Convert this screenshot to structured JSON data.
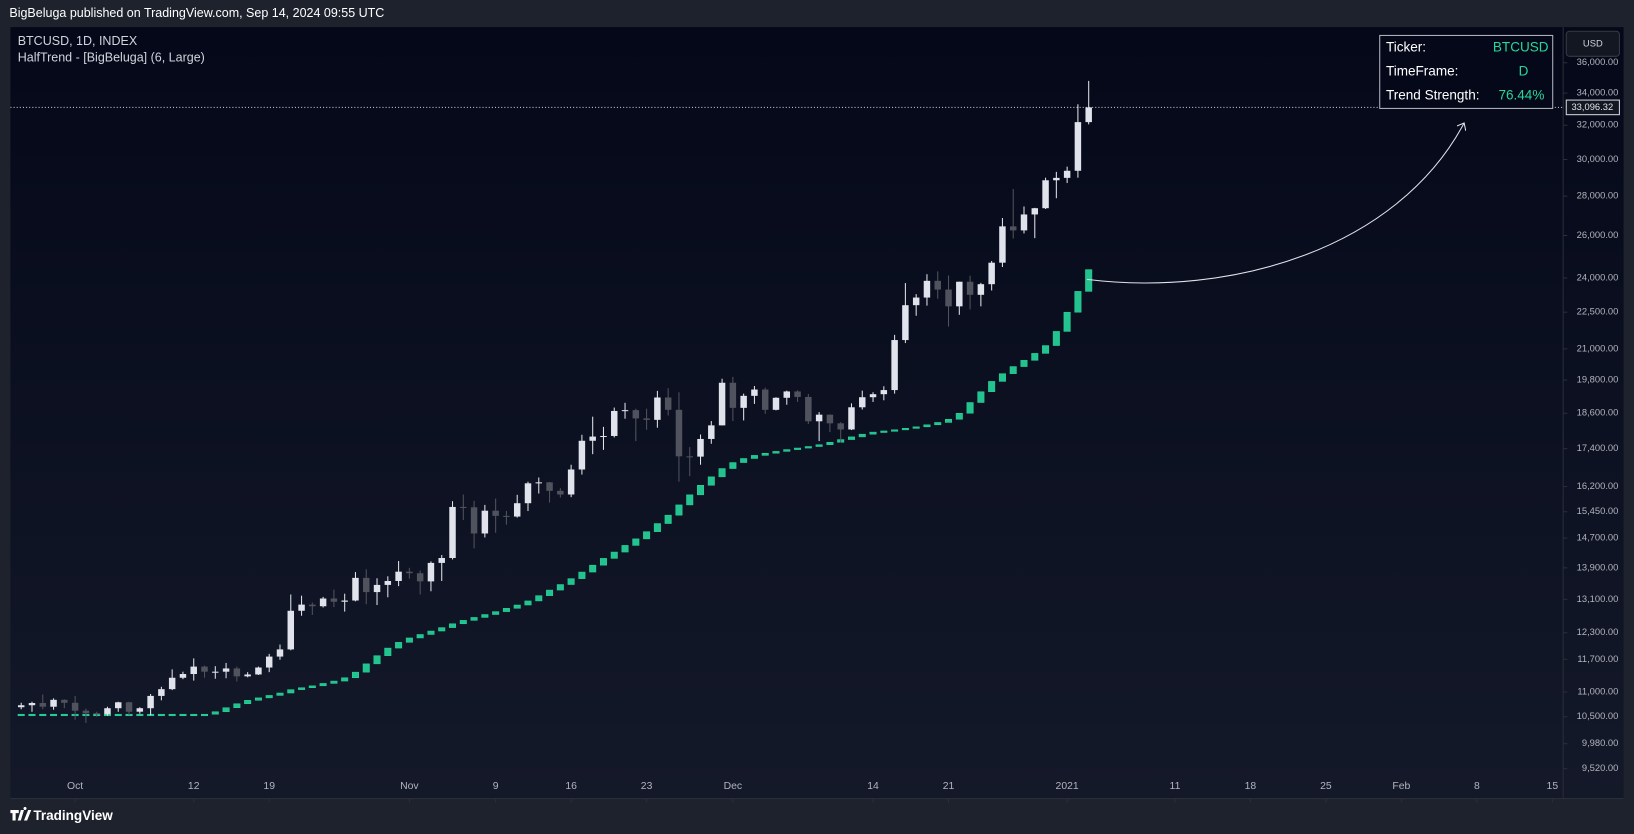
{
  "header": {
    "publisher": "BigBeluga published on TradingView.com, Sep 14, 2024 09:55 UTC"
  },
  "info_table": {
    "rows": [
      [
        "Ticker:",
        "BTCUSD"
      ],
      [
        "TimeFrame:",
        "D"
      ],
      [
        "Trend Strength:",
        "76.44%"
      ]
    ]
  },
  "footer": {
    "brand": "TradingView"
  },
  "chart_data": {
    "type": "candlestick",
    "title": "BTCUSD, 1D, INDEX",
    "currency": "USD",
    "up_color": "#e0e3eb",
    "down_color": "#50535e",
    "log_scale": true,
    "grid": false,
    "x": [
      "2020-09-26",
      "2020-09-27",
      "2020-09-28",
      "2020-09-29",
      "2020-09-30",
      "2020-10-01",
      "2020-10-02",
      "2020-10-03",
      "2020-10-04",
      "2020-10-05",
      "2020-10-06",
      "2020-10-07",
      "2020-10-08",
      "2020-10-09",
      "2020-10-10",
      "2020-10-11",
      "2020-10-12",
      "2020-10-13",
      "2020-10-14",
      "2020-10-15",
      "2020-10-16",
      "2020-10-17",
      "2020-10-18",
      "2020-10-19",
      "2020-10-20",
      "2020-10-21",
      "2020-10-22",
      "2020-10-23",
      "2020-10-24",
      "2020-10-25",
      "2020-10-26",
      "2020-10-27",
      "2020-10-28",
      "2020-10-29",
      "2020-10-30",
      "2020-10-31",
      "2020-11-01",
      "2020-11-02",
      "2020-11-03",
      "2020-11-04",
      "2020-11-05",
      "2020-11-06",
      "2020-11-07",
      "2020-11-08",
      "2020-11-09",
      "2020-11-10",
      "2020-11-11",
      "2020-11-12",
      "2020-11-13",
      "2020-11-14",
      "2020-11-15",
      "2020-11-16",
      "2020-11-17",
      "2020-11-18",
      "2020-11-19",
      "2020-11-20",
      "2020-11-21",
      "2020-11-22",
      "2020-11-23",
      "2020-11-24",
      "2020-11-25",
      "2020-11-26",
      "2020-11-27",
      "2020-11-28",
      "2020-11-29",
      "2020-11-30",
      "2020-12-01",
      "2020-12-02",
      "2020-12-03",
      "2020-12-04",
      "2020-12-05",
      "2020-12-06",
      "2020-12-07",
      "2020-12-08",
      "2020-12-09",
      "2020-12-10",
      "2020-12-11",
      "2020-12-12",
      "2020-12-13",
      "2020-12-14",
      "2020-12-15",
      "2020-12-16",
      "2020-12-17",
      "2020-12-18",
      "2020-12-19",
      "2020-12-20",
      "2020-12-21",
      "2020-12-22",
      "2020-12-23",
      "2020-12-24",
      "2020-12-25",
      "2020-12-26",
      "2020-12-27",
      "2020-12-28",
      "2020-12-29",
      "2020-12-30",
      "2020-12-31",
      "2021-01-01",
      "2021-01-02",
      "2021-01-03"
    ],
    "open": [
      10690,
      10730,
      10775,
      10700,
      10840,
      10780,
      10620,
      10570,
      10550,
      10670,
      10790,
      10600,
      10670,
      10920,
      11060,
      11300,
      11380,
      11540,
      11430,
      11430,
      11500,
      11330,
      11370,
      11520,
      11760,
      11920,
      12820,
      12970,
      12930,
      13120,
      13040,
      13070,
      13640,
      13280,
      13460,
      13560,
      13800,
      13760,
      13550,
      14030,
      14160,
      15590,
      15580,
      14830,
      15480,
      15330,
      15310,
      15700,
      16300,
      16330,
      16070,
      15960,
      16730,
      17660,
      17800,
      17820,
      18680,
      18710,
      18420,
      18370,
      19160,
      18720,
      17150,
      17140,
      17720,
      18180,
      19700,
      18790,
      19220,
      19450,
      18720,
      19150,
      19380,
      19180,
      18320,
      18550,
      18250,
      18040,
      18810,
      19170,
      19280,
      19430,
      21350,
      22800,
      23130,
      23870,
      23480,
      22750,
      23830,
      23250,
      23720,
      24700,
      26450,
      26250,
      27050,
      27370,
      28850,
      28980,
      29370,
      32190
    ],
    "high": [
      10780,
      10800,
      10950,
      10870,
      10850,
      10920,
      10660,
      10600,
      10700,
      10800,
      10800,
      10690,
      10960,
      11110,
      11480,
      11430,
      11720,
      11560,
      11550,
      11620,
      11540,
      11420,
      11540,
      11820,
      12030,
      13220,
      13190,
      13020,
      13160,
      13340,
      13240,
      13790,
      13860,
      13630,
      13680,
      14080,
      13900,
      13830,
      14070,
      14240,
      15760,
      15960,
      15770,
      15650,
      15840,
      15470,
      15950,
      16350,
      16480,
      16340,
      16150,
      16880,
      17860,
      18480,
      18130,
      18800,
      18970,
      18760,
      18760,
      19400,
      19500,
      19350,
      17450,
      17870,
      18330,
      19850,
      19920,
      19300,
      19580,
      19520,
      19170,
      19410,
      19420,
      19290,
      18640,
      18560,
      18290,
      18950,
      19410,
      19350,
      19570,
      21560,
      23770,
      23280,
      24170,
      24300,
      24110,
      23830,
      24100,
      23780,
      24780,
      26870,
      28380,
      27460,
      27390,
      28990,
      29310,
      29600,
      33290,
      34790
    ],
    "low": [
      10650,
      10600,
      10650,
      10640,
      10670,
      10440,
      10380,
      10500,
      10520,
      10600,
      10530,
      10560,
      10530,
      10830,
      11040,
      11270,
      11240,
      11300,
      11280,
      11290,
      11220,
      11310,
      11360,
      11420,
      11690,
      11900,
      12700,
      12720,
      12900,
      12910,
      12800,
      13050,
      12980,
      12960,
      13150,
      13430,
      13620,
      13220,
      13300,
      13560,
      14120,
      15210,
      14420,
      14720,
      14850,
      15080,
      15280,
      15470,
      15990,
      15720,
      15870,
      15880,
      16570,
      17220,
      17360,
      17770,
      18410,
      17650,
      18030,
      18100,
      18520,
      16350,
      16520,
      16880,
      17560,
      18180,
      18330,
      18350,
      18930,
      18580,
      18700,
      18900,
      19000,
      18230,
      17650,
      17950,
      17600,
      18020,
      18730,
      19000,
      19060,
      19300,
      21230,
      22350,
      22780,
      23080,
      21900,
      22390,
      22620,
      22750,
      23440,
      24500,
      25850,
      26100,
      25870,
      27330,
      27890,
      28700,
      28990,
      32050
    ],
    "close": [
      10730,
      10775,
      10700,
      10840,
      10780,
      10620,
      10570,
      10550,
      10670,
      10790,
      10600,
      10670,
      10920,
      11060,
      11300,
      11380,
      11540,
      11430,
      11430,
      11500,
      11330,
      11370,
      11520,
      11760,
      11920,
      12820,
      12970,
      12930,
      13120,
      13040,
      13070,
      13640,
      13280,
      13460,
      13560,
      13800,
      13760,
      13550,
      14030,
      14160,
      15590,
      15580,
      14830,
      15480,
      15330,
      15310,
      15700,
      16300,
      16330,
      16070,
      15960,
      16730,
      17660,
      17800,
      17820,
      18680,
      18710,
      18420,
      18370,
      19160,
      18720,
      17150,
      17140,
      17720,
      18180,
      19700,
      18790,
      19220,
      19450,
      18720,
      19150,
      19380,
      19180,
      18320,
      18550,
      18250,
      18040,
      18810,
      19170,
      19280,
      19430,
      21350,
      22800,
      23130,
      23870,
      23480,
      22750,
      23830,
      23250,
      23720,
      24700,
      26450,
      26250,
      27050,
      27370,
      28850,
      28980,
      29370,
      32190,
      33096.32
    ],
    "series": [
      {
        "name": "HalfTrend - [BigBeluga] (6, Large)",
        "color": "#26d69a",
        "values": [
          10550,
          10550,
          10550,
          10550,
          10550,
          10550,
          10550,
          10550,
          10550,
          10550,
          10550,
          10550,
          10550,
          10550,
          10550,
          10550,
          10550,
          10550,
          10600,
          10680,
          10760,
          10830,
          10880,
          10930,
          10980,
          11050,
          11090,
          11130,
          11180,
          11230,
          11300,
          11420,
          11600,
          11780,
          11950,
          12080,
          12180,
          12260,
          12340,
          12420,
          12510,
          12590,
          12660,
          12730,
          12800,
          12880,
          12960,
          13060,
          13190,
          13330,
          13470,
          13620,
          13790,
          13970,
          14150,
          14320,
          14500,
          14680,
          14880,
          15110,
          15350,
          15650,
          15950,
          16240,
          16500,
          16760,
          16950,
          17080,
          17180,
          17250,
          17310,
          17370,
          17420,
          17470,
          17530,
          17610,
          17700,
          17790,
          17880,
          17950,
          17990,
          18030,
          18080,
          18130,
          18200,
          18280,
          18390,
          18600,
          18980,
          19370,
          19750,
          20040,
          20310,
          20550,
          20820,
          21130,
          21700,
          22500,
          23400,
          24380
        ]
      }
    ],
    "last_price": {
      "value": 33096.32,
      "label": "33,096.32"
    },
    "xlim": [
      "2020-09-25",
      "2021-02-16"
    ],
    "xticks": [
      {
        "value": "2020-10-01",
        "label": "Oct"
      },
      {
        "value": "2020-10-12",
        "label": "12"
      },
      {
        "value": "2020-10-19",
        "label": "19"
      },
      {
        "value": "2020-11-01",
        "label": "Nov"
      },
      {
        "value": "2020-11-09",
        "label": "9"
      },
      {
        "value": "2020-11-16",
        "label": "16"
      },
      {
        "value": "2020-11-23",
        "label": "23"
      },
      {
        "value": "2020-12-01",
        "label": "Dec"
      },
      {
        "value": "2020-12-14",
        "label": "14"
      },
      {
        "value": "2020-12-21",
        "label": "21"
      },
      {
        "value": "2021-01-01",
        "label": "2021"
      },
      {
        "value": "2021-01-11",
        "label": "11"
      },
      {
        "value": "2021-01-18",
        "label": "18"
      },
      {
        "value": "2021-01-25",
        "label": "25"
      },
      {
        "value": "2021-02-01",
        "label": "Feb"
      },
      {
        "value": "2021-02-08",
        "label": "8"
      },
      {
        "value": "2021-02-15",
        "label": "15"
      }
    ],
    "ylim": [
      9000,
      38500
    ],
    "yticks": [
      {
        "value": 36000,
        "label": "36,000.00"
      },
      {
        "value": 34000,
        "label": "34,000.00"
      },
      {
        "value": 32000,
        "label": "32,000.00"
      },
      {
        "value": 30000,
        "label": "30,000.00"
      },
      {
        "value": 28000,
        "label": "28,000.00"
      },
      {
        "value": 26000,
        "label": "26,000.00"
      },
      {
        "value": 24000,
        "label": "24,000.00"
      },
      {
        "value": 22500,
        "label": "22,500.00"
      },
      {
        "value": 21000,
        "label": "21,000.00"
      },
      {
        "value": 19800,
        "label": "19,800.00"
      },
      {
        "value": 18600,
        "label": "18,600.00"
      },
      {
        "value": 17400,
        "label": "17,400.00"
      },
      {
        "value": 16200,
        "label": "16,200.00"
      },
      {
        "value": 15450,
        "label": "15,450.00"
      },
      {
        "value": 14700,
        "label": "14,700.00"
      },
      {
        "value": 13900,
        "label": "13,900.00"
      },
      {
        "value": 13100,
        "label": "13,100.00"
      },
      {
        "value": 12300,
        "label": "12,300.00"
      },
      {
        "value": 11700,
        "label": "11,700.00"
      },
      {
        "value": 11000,
        "label": "11,000.00"
      },
      {
        "value": 10500,
        "label": "10,500.00"
      },
      {
        "value": 9980,
        "label": "9,980.00"
      },
      {
        "value": 9520,
        "label": "9,520.00"
      }
    ]
  }
}
